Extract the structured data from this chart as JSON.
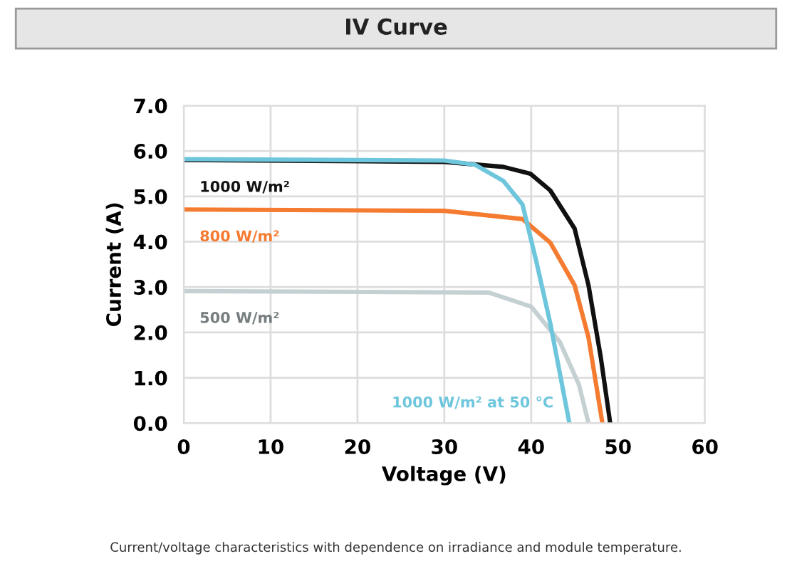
{
  "chart_data": {
    "type": "line",
    "title": "IV Curve",
    "xlabel": "Voltage (V)",
    "ylabel": "Current (A)",
    "xlim": [
      0,
      60
    ],
    "xticks": [
      0,
      10,
      20,
      30,
      40,
      50,
      60
    ],
    "ylim": [
      0,
      7
    ],
    "yticks": [
      {
        "value": 0,
        "label": "0.0"
      },
      {
        "value": 1,
        "label": "1.0"
      },
      {
        "value": 2,
        "label": "2.0"
      },
      {
        "value": 3,
        "label": "3.0"
      },
      {
        "value": 4,
        "label": "4.0"
      },
      {
        "value": 5,
        "label": "5.0"
      },
      {
        "value": 6,
        "label": "6.0"
      },
      {
        "value": 7,
        "label": "7.0"
      }
    ],
    "grid": true,
    "legend": false,
    "marker": "none",
    "line_style": "solid",
    "series": [
      {
        "name": "500 W/m²",
        "color": "#c5d0d3",
        "x": [
          0,
          35.1,
          40.0,
          43.3,
          45.5,
          46.6
        ],
        "values": [
          2.91,
          2.88,
          2.57,
          1.79,
          0.85,
          0
        ]
      },
      {
        "name": "800 W/m²",
        "color": "#f47b30",
        "x": [
          0,
          30,
          39.0,
          42.2,
          45.0,
          46.6,
          48.2
        ],
        "values": [
          4.71,
          4.68,
          4.5,
          3.98,
          3.04,
          1.89,
          0
        ]
      },
      {
        "name": "1000 W/m²",
        "color": "#111111",
        "x": [
          0,
          30,
          36.8,
          39.9,
          42.2,
          45.0,
          46.6,
          48.0,
          49.1
        ],
        "values": [
          5.8,
          5.76,
          5.65,
          5.5,
          5.13,
          4.29,
          3.04,
          1.47,
          0
        ]
      },
      {
        "name": "1000 W/m² at 50 °C",
        "color": "#6ec6dc",
        "x": [
          0,
          30,
          33.5,
          36.8,
          39.0,
          40.6,
          42.2,
          44.4
        ],
        "values": [
          5.82,
          5.79,
          5.7,
          5.34,
          4.82,
          3.56,
          2.2,
          0
        ]
      }
    ],
    "annotations": [
      "Current/voltage characteristics with dependence on irradiance and module temperature."
    ]
  }
}
